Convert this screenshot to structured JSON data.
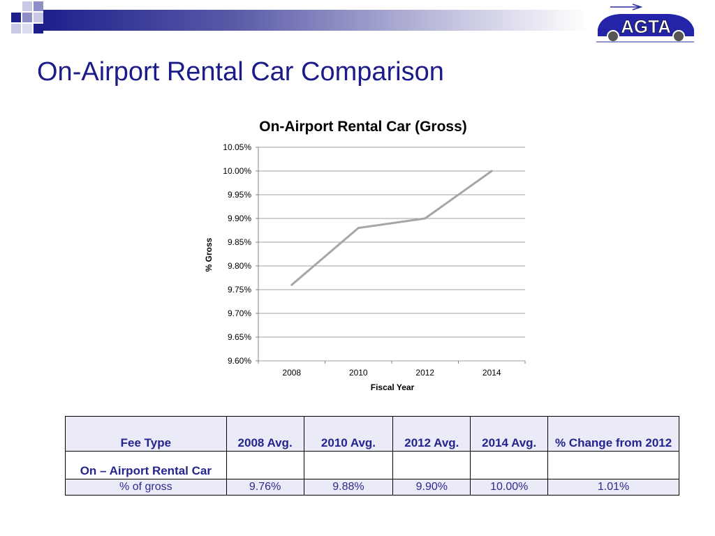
{
  "slide": {
    "title": "On-Airport Rental Car Comparison",
    "logo_text": "AGTA"
  },
  "colors": {
    "title": "#1b1b8a",
    "header_dark": "#1f1f8c",
    "table_header_bg": "#ebebf7",
    "line": "#a6a6a6",
    "grid": "#808080"
  },
  "chart_data": {
    "type": "line",
    "title": "On-Airport Rental Car (Gross)",
    "xlabel": "Fiscal Year",
    "ylabel": "% Gross",
    "x": [
      "2008",
      "2010",
      "2012",
      "2014"
    ],
    "series": [
      {
        "values": [
          9.76,
          9.88,
          9.9,
          10.0
        ]
      }
    ],
    "ylim": [
      9.6,
      10.05
    ],
    "yticks": [
      "10.05%",
      "10.00%",
      "9.95%",
      "9.90%",
      "9.85%",
      "9.80%",
      "9.75%",
      "9.70%",
      "9.65%",
      "9.60%"
    ],
    "grid": true,
    "legend": "none"
  },
  "table": {
    "headers": [
      "Fee Type",
      "2008 Avg.",
      "2010 Avg.",
      "2012 Avg.",
      "2014 Avg.",
      "% Change from 2012"
    ],
    "category": "On – Airport Rental Car",
    "row_label": "% of gross",
    "row_values": [
      "9.76%",
      "9.88%",
      "9.90%",
      "10.00%",
      "1.01%"
    ]
  }
}
